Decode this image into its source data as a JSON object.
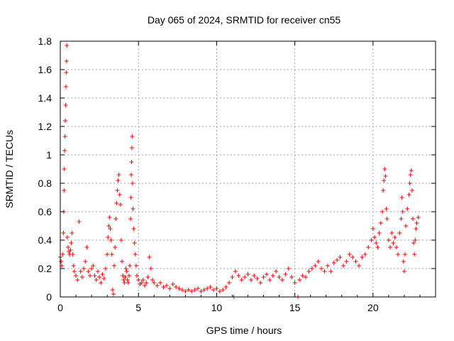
{
  "chart_data": {
    "type": "scatter",
    "title": "Day 065 of 2024, SRMTID for receiver cn55",
    "xlabel": "GPS time / hours",
    "ylabel": "SRMTID / TECUs",
    "xlim": [
      0,
      24
    ],
    "ylim": [
      0,
      1.8
    ],
    "xticks": [
      0,
      5,
      10,
      15,
      20
    ],
    "xtick_labels": [
      "0",
      "5",
      "10",
      "15",
      "20"
    ],
    "yticks": [
      0,
      0.2,
      0.4,
      0.6,
      0.8,
      1,
      1.2,
      1.4,
      1.6,
      1.8
    ],
    "ytick_labels": [
      "0",
      "0.2",
      "0.4",
      "0.6",
      "0.8",
      "1",
      "1.2",
      "1.4",
      "1.6",
      "1.8"
    ],
    "grid": true,
    "marker": "+",
    "color": "#ff0000",
    "series": [
      {
        "name": "SRMTID",
        "points": [
          [
            0.0,
            0.28
          ],
          [
            0.05,
            0.25
          ],
          [
            0.1,
            0.22
          ],
          [
            0.15,
            0.3
          ],
          [
            0.2,
            0.45
          ],
          [
            0.22,
            0.6
          ],
          [
            0.24,
            0.75
          ],
          [
            0.26,
            0.9
          ],
          [
            0.28,
            1.03
          ],
          [
            0.3,
            1.13
          ],
          [
            0.32,
            1.24
          ],
          [
            0.34,
            1.35
          ],
          [
            0.36,
            1.48
          ],
          [
            0.38,
            1.58
          ],
          [
            0.4,
            1.66
          ],
          [
            0.42,
            1.77
          ],
          [
            0.45,
            0.42
          ],
          [
            0.5,
            0.35
          ],
          [
            0.55,
            0.32
          ],
          [
            0.6,
            0.3
          ],
          [
            0.65,
            0.33
          ],
          [
            0.7,
            0.38
          ],
          [
            0.75,
            0.45
          ],
          [
            0.8,
            0.3
          ],
          [
            0.85,
            0.22
          ],
          [
            0.9,
            0.18
          ],
          [
            1.0,
            0.15
          ],
          [
            1.1,
            0.12
          ],
          [
            1.2,
            0.53
          ],
          [
            1.3,
            0.18
          ],
          [
            1.4,
            0.14
          ],
          [
            1.5,
            0.2
          ],
          [
            1.6,
            0.25
          ],
          [
            1.7,
            0.35
          ],
          [
            1.8,
            0.18
          ],
          [
            1.9,
            0.15
          ],
          [
            2.0,
            0.2
          ],
          [
            2.1,
            0.22
          ],
          [
            2.2,
            0.15
          ],
          [
            2.3,
            0.12
          ],
          [
            2.4,
            0.18
          ],
          [
            2.5,
            0.14
          ],
          [
            2.6,
            0.1
          ],
          [
            2.7,
            0.16
          ],
          [
            2.8,
            0.13
          ],
          [
            2.9,
            0.2
          ],
          [
            3.0,
            0.3
          ],
          [
            3.05,
            0.42
          ],
          [
            3.1,
            0.5
          ],
          [
            3.15,
            0.56
          ],
          [
            3.2,
            0.48
          ],
          [
            3.25,
            0.4
          ],
          [
            3.3,
            0.3
          ],
          [
            3.35,
            0.05
          ],
          [
            3.4,
            0.02
          ],
          [
            3.45,
            0.22
          ],
          [
            3.5,
            0.35
          ],
          [
            3.55,
            0.55
          ],
          [
            3.6,
            0.66
          ],
          [
            3.65,
            0.75
          ],
          [
            3.7,
            0.82
          ],
          [
            3.75,
            0.86
          ],
          [
            3.8,
            0.72
          ],
          [
            3.85,
            0.65
          ],
          [
            3.9,
            0.4
          ],
          [
            3.95,
            0.25
          ],
          [
            4.0,
            0.15
          ],
          [
            4.05,
            0.12
          ],
          [
            4.1,
            0.1
          ],
          [
            4.15,
            0.14
          ],
          [
            4.2,
            0.2
          ],
          [
            4.25,
            0.18
          ],
          [
            4.3,
            0.12
          ],
          [
            4.35,
            0.1
          ],
          [
            4.4,
            0.15
          ],
          [
            4.45,
            0.22
          ],
          [
            4.5,
            0.55
          ],
          [
            4.52,
            0.7
          ],
          [
            4.54,
            0.86
          ],
          [
            4.56,
            0.95
          ],
          [
            4.58,
            1.05
          ],
          [
            4.6,
            1.13
          ],
          [
            4.62,
            0.8
          ],
          [
            4.65,
            0.62
          ],
          [
            4.7,
            0.48
          ],
          [
            4.75,
            0.38
          ],
          [
            4.8,
            0.3
          ],
          [
            4.85,
            0.22
          ],
          [
            4.9,
            0.15
          ],
          [
            5.0,
            0.12
          ],
          [
            5.1,
            0.09
          ],
          [
            5.2,
            0.1
          ],
          [
            5.3,
            0.12
          ],
          [
            5.4,
            0.08
          ],
          [
            5.5,
            0.1
          ],
          [
            5.6,
            0.14
          ],
          [
            5.7,
            0.28
          ],
          [
            5.8,
            0.2
          ],
          [
            5.9,
            0.12
          ],
          [
            6.0,
            0.1
          ],
          [
            6.2,
            0.08
          ],
          [
            6.4,
            0.1
          ],
          [
            6.6,
            0.07
          ],
          [
            6.8,
            0.08
          ],
          [
            7.0,
            0.06
          ],
          [
            7.2,
            0.09
          ],
          [
            7.4,
            0.07
          ],
          [
            7.6,
            0.06
          ],
          [
            7.8,
            0.05
          ],
          [
            8.0,
            0.04
          ],
          [
            8.2,
            0.05
          ],
          [
            8.4,
            0.04
          ],
          [
            8.6,
            0.05
          ],
          [
            8.8,
            0.06
          ],
          [
            9.0,
            0.04
          ],
          [
            9.2,
            0.05
          ],
          [
            9.4,
            0.06
          ],
          [
            9.6,
            0.07
          ],
          [
            9.8,
            0.05
          ],
          [
            10.0,
            0.06
          ],
          [
            10.2,
            0.04
          ],
          [
            10.4,
            0.05
          ],
          [
            10.6,
            0.07
          ],
          [
            10.8,
            0.1
          ],
          [
            11.0,
            0.14
          ],
          [
            11.1,
            0.0
          ],
          [
            11.2,
            0.18
          ],
          [
            11.4,
            0.15
          ],
          [
            11.6,
            0.12
          ],
          [
            11.8,
            0.14
          ],
          [
            12.0,
            0.16
          ],
          [
            12.2,
            0.12
          ],
          [
            12.4,
            0.15
          ],
          [
            12.6,
            0.13
          ],
          [
            12.8,
            0.1
          ],
          [
            13.0,
            0.14
          ],
          [
            13.2,
            0.16
          ],
          [
            13.4,
            0.12
          ],
          [
            13.6,
            0.15
          ],
          [
            13.8,
            0.18
          ],
          [
            14.0,
            0.14
          ],
          [
            14.2,
            0.12
          ],
          [
            14.4,
            0.16
          ],
          [
            14.6,
            0.2
          ],
          [
            14.8,
            0.14
          ],
          [
            15.0,
            0.1
          ],
          [
            15.2,
            0.0
          ],
          [
            15.3,
            0.12
          ],
          [
            15.5,
            0.15
          ],
          [
            15.7,
            0.14
          ],
          [
            15.9,
            0.18
          ],
          [
            16.1,
            0.2
          ],
          [
            16.3,
            0.22
          ],
          [
            16.5,
            0.25
          ],
          [
            16.7,
            0.2
          ],
          [
            16.9,
            0.18
          ],
          [
            17.1,
            0.22
          ],
          [
            17.3,
            0.18
          ],
          [
            17.5,
            0.24
          ],
          [
            17.7,
            0.26
          ],
          [
            17.9,
            0.28
          ],
          [
            18.1,
            0.22
          ],
          [
            18.3,
            0.25
          ],
          [
            18.5,
            0.3
          ],
          [
            18.7,
            0.28
          ],
          [
            18.9,
            0.25
          ],
          [
            19.1,
            0.22
          ],
          [
            19.3,
            0.28
          ],
          [
            19.5,
            0.3
          ],
          [
            19.7,
            0.35
          ],
          [
            19.9,
            0.4
          ],
          [
            20.0,
            0.48
          ],
          [
            20.1,
            0.42
          ],
          [
            20.2,
            0.38
          ],
          [
            20.3,
            0.35
          ],
          [
            20.4,
            0.45
          ],
          [
            20.5,
            0.52
          ],
          [
            20.6,
            0.6
          ],
          [
            20.65,
            0.75
          ],
          [
            20.7,
            0.82
          ],
          [
            20.75,
            0.9
          ],
          [
            20.8,
            0.85
          ],
          [
            20.85,
            0.62
          ],
          [
            20.9,
            0.55
          ],
          [
            21.0,
            0.4
          ],
          [
            21.1,
            0.35
          ],
          [
            21.2,
            0.45
          ],
          [
            21.3,
            0.38
          ],
          [
            21.4,
            0.42
          ],
          [
            21.5,
            0.35
          ],
          [
            21.6,
            0.3
          ],
          [
            21.7,
            0.45
          ],
          [
            21.8,
            0.55
          ],
          [
            21.85,
            0.7
          ],
          [
            21.9,
            0.6
          ],
          [
            21.95,
            0.25
          ],
          [
            22.0,
            0.18
          ],
          [
            22.05,
            0.3
          ],
          [
            22.1,
            0.5
          ],
          [
            22.2,
            0.62
          ],
          [
            22.3,
            0.72
          ],
          [
            22.35,
            0.8
          ],
          [
            22.4,
            0.86
          ],
          [
            22.45,
            0.89
          ],
          [
            22.5,
            0.75
          ],
          [
            22.55,
            0.55
          ],
          [
            22.6,
            0.38
          ],
          [
            22.65,
            0.3
          ],
          [
            22.7,
            0.4
          ],
          [
            22.75,
            0.48
          ],
          [
            22.8,
            0.52
          ],
          [
            22.9,
            0.56
          ]
        ]
      }
    ]
  }
}
